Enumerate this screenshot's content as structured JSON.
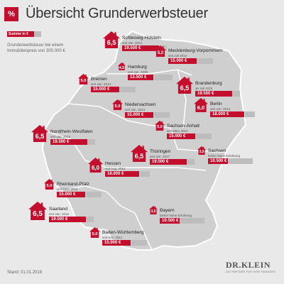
{
  "header": {
    "icon_label": "%",
    "title": "Übersicht Grunderwerbsteuer"
  },
  "legend": {
    "label": "Summe in €",
    "text": "Grunderwerbsteuer bei einem Immobilienpreis von 300.000 €"
  },
  "states": [
    {
      "name": "Schleswig-Holstein",
      "since": "seit Jan. 2014",
      "rate": "6,5",
      "amount": "19.500 €",
      "amount_value": 19500
    },
    {
      "name": "Mecklenburg-Vorpommern",
      "since": "seit Juli 2012",
      "rate": "5,0",
      "amount": "15.000 €",
      "amount_value": 15000
    },
    {
      "name": "Hamburg",
      "since": "seit Jan. 2009",
      "rate": "4,5",
      "amount": "13.500 €",
      "amount_value": 13500
    },
    {
      "name": "Bremen",
      "since": "seit Jan. 2014",
      "rate": "5,0",
      "amount": "15.000 €",
      "amount_value": 15000
    },
    {
      "name": "Brandenburg",
      "since": "ab Juli 2015",
      "rate": "6,5",
      "amount": "19.500 €",
      "amount_value": 19500
    },
    {
      "name": "Niedersachsen",
      "since": "seit Jan. 2014",
      "rate": "5,0",
      "amount": "15.000 €",
      "amount_value": 15000
    },
    {
      "name": "Berlin",
      "since": "seit Jan. 2014",
      "rate": "6,0",
      "amount": "18.000 €",
      "amount_value": 18000
    },
    {
      "name": "Sachsen-Anhalt",
      "since": "seit März 2012",
      "rate": "5,0",
      "amount": "15.000 €",
      "amount_value": 15000
    },
    {
      "name": "Nordrhein-Westfalen",
      "since": "seit Jan. 2015",
      "rate": "6,5",
      "amount": "19.500 €",
      "amount_value": 19500
    },
    {
      "name": "Sachsen",
      "since": "bisher keine Erhöhung",
      "rate": "3,5",
      "amount": "10.500 €",
      "amount_value": 10500
    },
    {
      "name": "Thüringen",
      "since": "seit Jan. 2017",
      "rate": "6,5",
      "amount": "19.500 €",
      "amount_value": 19500
    },
    {
      "name": "Hessen",
      "since": "seit Aug. 2014",
      "rate": "6,0",
      "amount": "18.000 €",
      "amount_value": 18000
    },
    {
      "name": "Rheinland-Pfalz",
      "since": "seit März 2012",
      "rate": "5,0",
      "amount": "15.000 €",
      "amount_value": 15000
    },
    {
      "name": "Saarland",
      "since": "seit Jan. 2015",
      "rate": "6,5",
      "amount": "19.500 €",
      "amount_value": 19500
    },
    {
      "name": "Bayern",
      "since": "bisher keine Erhöhung",
      "rate": "3,5",
      "amount": "10.500 €",
      "amount_value": 10500
    },
    {
      "name": "Baden-Württemberg",
      "since": "seit Nov. 2011",
      "rate": "5,0",
      "amount": "15.000 €",
      "amount_value": 15000
    }
  ],
  "footer": {
    "stand": "Stand: 01.01.2018",
    "logo": "DR.KLEIN",
    "logo_sub": "DIE PARTNER FÜR IHRE FINANZEN"
  },
  "colors": {
    "accent": "#c30e2e",
    "map": "#cfcfcf",
    "bar_grey": "#bdbdbd",
    "background": "#e9e9e9"
  },
  "icons": {
    "header": "percent-icon",
    "state": "house-icon"
  }
}
